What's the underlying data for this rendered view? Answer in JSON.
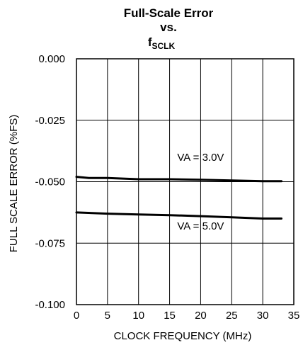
{
  "chart_data": {
    "type": "line",
    "title": {
      "line1": "Full-Scale Error",
      "line2": "vs.",
      "line3_main": "f",
      "line3_sub": "SCLK"
    },
    "xlabel": "CLOCK FREQUENCY (MHz)",
    "ylabel": "FULL SCALE ERROR (%FS)",
    "xlim": [
      0,
      35
    ],
    "ylim": [
      -0.1,
      0.0
    ],
    "x_ticks": [
      0,
      5,
      10,
      15,
      20,
      25,
      30,
      35
    ],
    "x_tick_labels": [
      "0",
      "5",
      "10",
      "15",
      "20",
      "25",
      "30",
      "35"
    ],
    "y_ticks": [
      0.0,
      -0.025,
      -0.05,
      -0.075,
      -0.1
    ],
    "y_tick_labels": [
      "0.000",
      "-0.025",
      "-0.050",
      "-0.075",
      "-0.100"
    ],
    "grid": true,
    "series": [
      {
        "name": "VA = 3.0V",
        "x": [
          0,
          2,
          5,
          10,
          15,
          20,
          25,
          30,
          33
        ],
        "y": [
          -0.048,
          -0.0485,
          -0.0485,
          -0.049,
          -0.049,
          -0.0492,
          -0.0495,
          -0.0498,
          -0.0498
        ]
      },
      {
        "name": "VA = 5.0V",
        "x": [
          0,
          5,
          10,
          15,
          20,
          25,
          30,
          33
        ],
        "y": [
          -0.0625,
          -0.063,
          -0.0633,
          -0.0636,
          -0.064,
          -0.0645,
          -0.065,
          -0.065
        ]
      }
    ],
    "annotations": [
      {
        "text": "VA = 3.0V",
        "x": 20,
        "y": -0.0415
      },
      {
        "text": "VA = 5.0V",
        "x": 20,
        "y": -0.0695
      }
    ]
  }
}
